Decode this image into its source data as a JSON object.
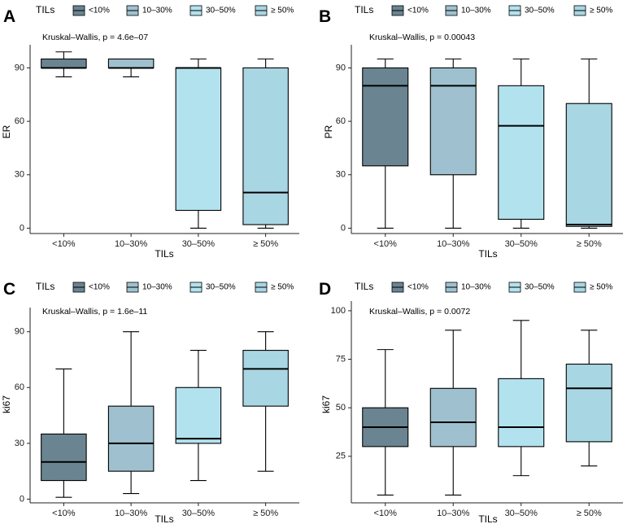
{
  "legend": {
    "title": "TILs",
    "entries": [
      {
        "label": "<10%",
        "color": "#6a8591"
      },
      {
        "label": "10–30%",
        "color": "#9fc1cf"
      },
      {
        "label": "30–50%",
        "color": "#b3e2ef"
      },
      {
        "label": "≥ 50%",
        "color": "#a9d6e3"
      }
    ]
  },
  "chart_data": [
    {
      "panel": "A",
      "type": "box",
      "annotation": "Kruskal–Wallis, p = 4.6e–07",
      "xlabel": "TILs",
      "ylabel": "ER",
      "categories": [
        "<10%",
        "10–30%",
        "30–50%",
        "≥ 50%"
      ],
      "yticks": [
        0,
        30,
        60,
        90
      ],
      "ylim": [
        -3,
        103
      ],
      "boxes": [
        {
          "category": "<10%",
          "min": 85,
          "q1": 90,
          "median": 90,
          "q3": 95,
          "max": 99
        },
        {
          "category": "10–30%",
          "min": 85,
          "q1": 90,
          "median": 90,
          "q3": 95,
          "max": 95
        },
        {
          "category": "30–50%",
          "min": 0,
          "q1": 10,
          "median": 90,
          "q3": 90,
          "max": 95
        },
        {
          "category": "≥ 50%",
          "min": 0,
          "q1": 2,
          "median": 20,
          "q3": 90,
          "max": 95
        }
      ]
    },
    {
      "panel": "B",
      "type": "box",
      "annotation": "Kruskal–Wallis, p = 0.00043",
      "xlabel": "TILs",
      "ylabel": "PR",
      "categories": [
        "<10%",
        "10–30%",
        "30–50%",
        "≥ 50%"
      ],
      "yticks": [
        0,
        30,
        60,
        90
      ],
      "ylim": [
        -3,
        103
      ],
      "boxes": [
        {
          "category": "<10%",
          "min": 0,
          "q1": 35,
          "median": 80,
          "q3": 90,
          "max": 95
        },
        {
          "category": "10–30%",
          "min": 0,
          "q1": 30,
          "median": 80,
          "q3": 90,
          "max": 95
        },
        {
          "category": "30–50%",
          "min": 0,
          "q1": 5,
          "median": 57.5,
          "q3": 80,
          "max": 95
        },
        {
          "category": "≥ 50%",
          "min": 0,
          "q1": 1,
          "median": 2,
          "q3": 70,
          "max": 95
        }
      ]
    },
    {
      "panel": "C",
      "type": "box",
      "annotation": "Kruskal–Wallis, p = 1.6e–11",
      "xlabel": "TILs",
      "ylabel": "ki67",
      "categories": [
        "<10%",
        "10–30%",
        "30–50%",
        "≥ 50%"
      ],
      "yticks": [
        0,
        30,
        60,
        90
      ],
      "ylim": [
        -2,
        103
      ],
      "boxes": [
        {
          "category": "<10%",
          "min": 1,
          "q1": 10,
          "median": 20,
          "q3": 35,
          "max": 70
        },
        {
          "category": "10–30%",
          "min": 3,
          "q1": 15,
          "median": 30,
          "q3": 50,
          "max": 90
        },
        {
          "category": "30–50%",
          "min": 10,
          "q1": 30,
          "median": 32.5,
          "q3": 60,
          "max": 80
        },
        {
          "category": "≥ 50%",
          "min": 15,
          "q1": 50,
          "median": 70,
          "q3": 80,
          "max": 90
        }
      ]
    },
    {
      "panel": "D",
      "type": "box",
      "annotation": "Kruskal–Wallis, p = 0.0072",
      "xlabel": "TILs",
      "ylabel": "ki67",
      "categories": [
        "<10%",
        "10–30%",
        "30–50%",
        "≥ 50%"
      ],
      "yticks": [
        25,
        50,
        75,
        100
      ],
      "ylim": [
        1,
        105
      ],
      "boxes": [
        {
          "category": "<10%",
          "min": 5,
          "q1": 30,
          "median": 40,
          "q3": 50,
          "max": 80
        },
        {
          "category": "10–30%",
          "min": 5,
          "q1": 30,
          "median": 42.5,
          "q3": 60,
          "max": 90
        },
        {
          "category": "30–50%",
          "min": 15,
          "q1": 30,
          "median": 40,
          "q3": 65,
          "max": 95
        },
        {
          "category": "≥ 50%",
          "min": 20,
          "q1": 32.5,
          "median": 60,
          "q3": 72.5,
          "max": 90
        }
      ]
    }
  ]
}
